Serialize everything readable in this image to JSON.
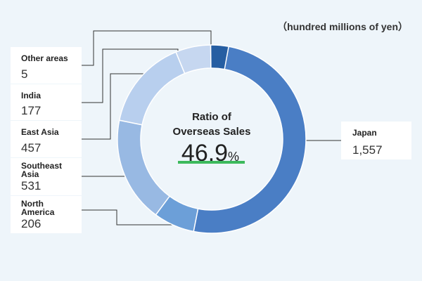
{
  "unit_note": "（hundred millions of yen）",
  "center": {
    "title_line1": "Ratio of",
    "title_line2": "Overseas Sales",
    "ratio_value": "46.9",
    "ratio_unit": "%"
  },
  "colors": {
    "underline": "#3cb95c",
    "leader": "#333333",
    "label_box": "#ffffff",
    "background": "#eef5fa"
  },
  "chart_data": {
    "type": "pie",
    "donut": true,
    "unit": "hundred millions of yen",
    "start_angle_deg": 0,
    "direction": "clockwise",
    "slices": [
      {
        "label": "Japan",
        "value": 1557,
        "value_text": "1,557",
        "color": "#4a7ec5"
      },
      {
        "label": "North America",
        "value": 206,
        "value_text": "206",
        "color": "#6c9fd8"
      },
      {
        "label": "Southeast Asia",
        "value": 531,
        "value_text": "531",
        "color": "#98b9e3"
      },
      {
        "label": "East Asia",
        "value": 457,
        "value_text": "457",
        "color": "#b8cfee"
      },
      {
        "label": "India",
        "value": 177,
        "value_text": "177",
        "color": "#c6d7f0"
      },
      {
        "label": "Other areas",
        "value": 5,
        "value_text": "5",
        "color": "#265ea2"
      }
    ]
  }
}
